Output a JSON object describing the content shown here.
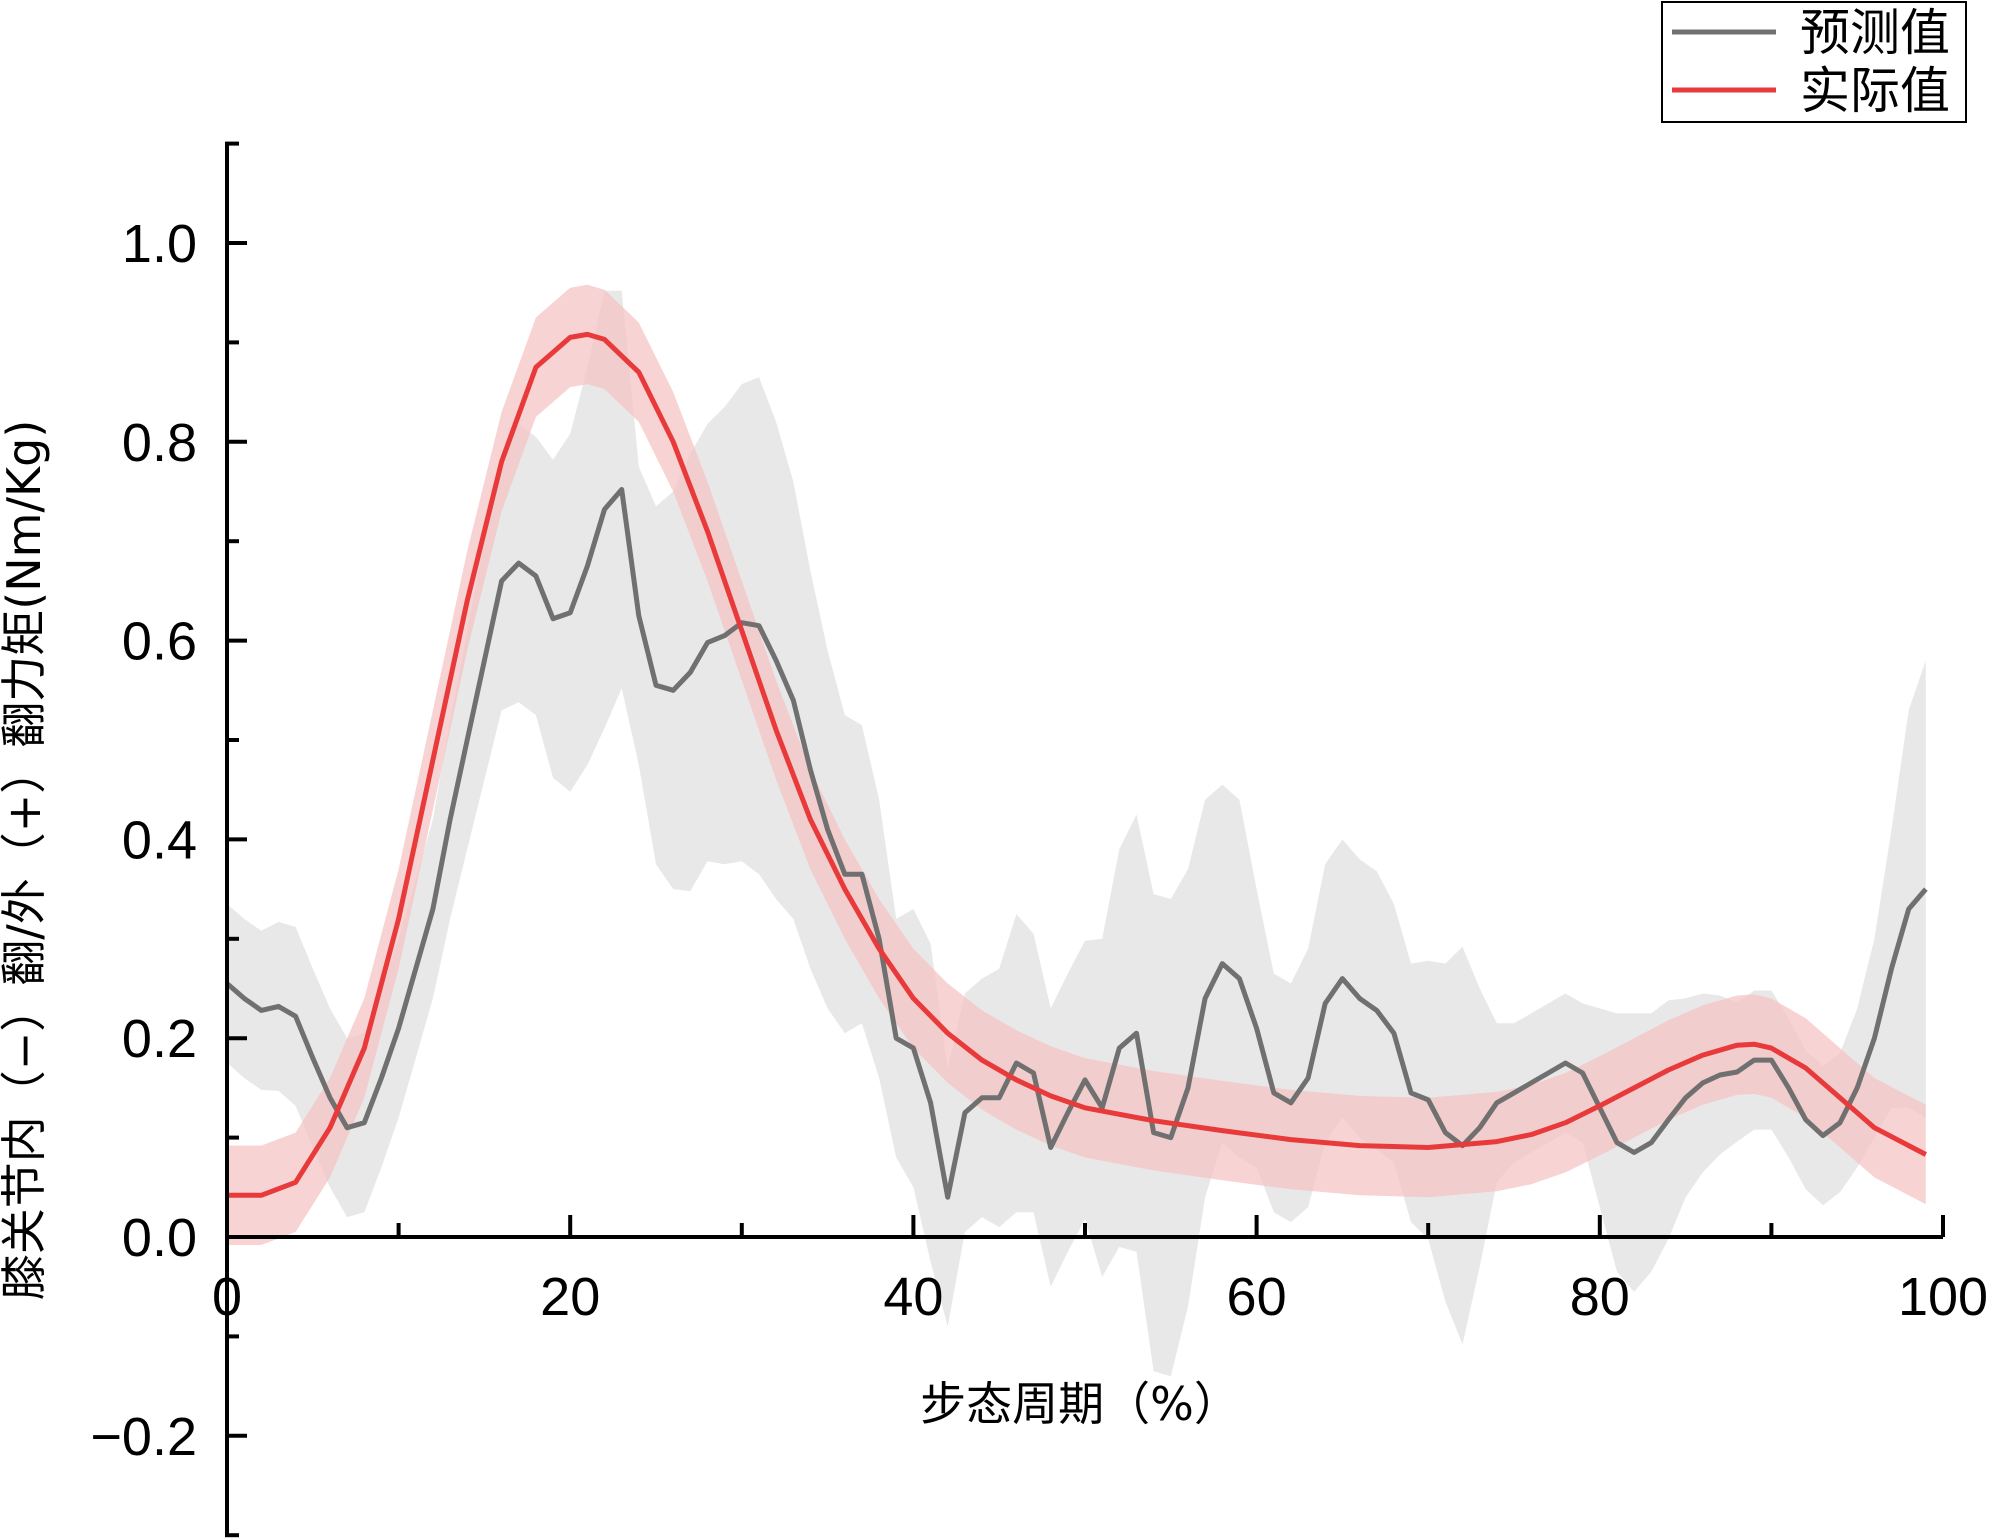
{
  "chart_data": {
    "type": "line",
    "xlabel": "步态周期（%）",
    "ylabel": "膝关节内（−）翻/外（+）翻力矩(Nm/Kg)",
    "xlim": [
      0,
      100
    ],
    "ylim": [
      -0.3,
      1.1
    ],
    "x_ticks": [
      0,
      20,
      40,
      60,
      80,
      100
    ],
    "x_tick_labels": [
      "0",
      "20",
      "40",
      "60",
      "80",
      "100"
    ],
    "y_ticks": [
      -0.2,
      0.0,
      0.2,
      0.4,
      0.6,
      0.8,
      1.0
    ],
    "y_tick_labels": [
      "−0.2",
      "0.0",
      "0.2",
      "0.4",
      "0.6",
      "0.8",
      "1.0"
    ],
    "legend_position": "top-right",
    "grid": false,
    "series": [
      {
        "name": "预测值",
        "color": "#707070",
        "band_color": "#e0e0e0",
        "points": [
          [
            0,
            0.255
          ],
          [
            1,
            0.24
          ],
          [
            2,
            0.228
          ],
          [
            3,
            0.232
          ],
          [
            4,
            0.222
          ],
          [
            5,
            0.18
          ],
          [
            6,
            0.14
          ],
          [
            7,
            0.11
          ],
          [
            8,
            0.115
          ],
          [
            9,
            0.16
          ],
          [
            10,
            0.21
          ],
          [
            11,
            0.27
          ],
          [
            12,
            0.33
          ],
          [
            13,
            0.42
          ],
          [
            14,
            0.5
          ],
          [
            15,
            0.58
          ],
          [
            16,
            0.66
          ],
          [
            17,
            0.678
          ],
          [
            18,
            0.665
          ],
          [
            19,
            0.622
          ],
          [
            20,
            0.628
          ],
          [
            21,
            0.675
          ],
          [
            22,
            0.732
          ],
          [
            23,
            0.752
          ],
          [
            24,
            0.625
          ],
          [
            25,
            0.555
          ],
          [
            26,
            0.55
          ],
          [
            27,
            0.568
          ],
          [
            28,
            0.598
          ],
          [
            29,
            0.605
          ],
          [
            30,
            0.618
          ],
          [
            31,
            0.615
          ],
          [
            32,
            0.58
          ],
          [
            33,
            0.54
          ],
          [
            34,
            0.47
          ],
          [
            35,
            0.41
          ],
          [
            36,
            0.365
          ],
          [
            37,
            0.365
          ],
          [
            38,
            0.3
          ],
          [
            39,
            0.2
          ],
          [
            40,
            0.19
          ],
          [
            41,
            0.135
          ],
          [
            42,
            0.04
          ],
          [
            43,
            0.125
          ],
          [
            44,
            0.14
          ],
          [
            45,
            0.14
          ],
          [
            46,
            0.175
          ],
          [
            47,
            0.165
          ],
          [
            48,
            0.09
          ],
          [
            49,
            0.125
          ],
          [
            50,
            0.158
          ],
          [
            51,
            0.13
          ],
          [
            52,
            0.19
          ],
          [
            53,
            0.205
          ],
          [
            54,
            0.105
          ],
          [
            55,
            0.1
          ],
          [
            56,
            0.15
          ],
          [
            57,
            0.24
          ],
          [
            58,
            0.275
          ],
          [
            59,
            0.26
          ],
          [
            60,
            0.21
          ],
          [
            61,
            0.145
          ],
          [
            62,
            0.135
          ],
          [
            63,
            0.16
          ],
          [
            64,
            0.235
          ],
          [
            65,
            0.26
          ],
          [
            66,
            0.24
          ],
          [
            67,
            0.228
          ],
          [
            68,
            0.205
          ],
          [
            69,
            0.145
          ],
          [
            70,
            0.138
          ],
          [
            71,
            0.105
          ],
          [
            72,
            0.092
          ],
          [
            73,
            0.11
          ],
          [
            74,
            0.135
          ],
          [
            75,
            0.145
          ],
          [
            76,
            0.155
          ],
          [
            77,
            0.165
          ],
          [
            78,
            0.175
          ],
          [
            79,
            0.165
          ],
          [
            80,
            0.13
          ],
          [
            81,
            0.095
          ],
          [
            82,
            0.085
          ],
          [
            83,
            0.095
          ],
          [
            84,
            0.118
          ],
          [
            85,
            0.14
          ],
          [
            86,
            0.155
          ],
          [
            87,
            0.163
          ],
          [
            88,
            0.166
          ],
          [
            89,
            0.178
          ],
          [
            90,
            0.178
          ],
          [
            91,
            0.15
          ],
          [
            92,
            0.118
          ],
          [
            93,
            0.102
          ],
          [
            94,
            0.115
          ],
          [
            95,
            0.15
          ],
          [
            96,
            0.2
          ],
          [
            97,
            0.27
          ],
          [
            98,
            0.33
          ],
          [
            99,
            0.35
          ]
        ],
        "band_half_width": [
          0.08,
          0.08,
          0.08,
          0.085,
          0.09,
          0.09,
          0.09,
          0.09,
          0.09,
          0.09,
          0.09,
          0.09,
          0.09,
          0.1,
          0.11,
          0.12,
          0.13,
          0.14,
          0.14,
          0.16,
          0.18,
          0.2,
          0.22,
          0.2,
          0.15,
          0.18,
          0.2,
          0.22,
          0.22,
          0.23,
          0.24,
          0.25,
          0.24,
          0.22,
          0.2,
          0.18,
          0.16,
          0.15,
          0.14,
          0.12,
          0.14,
          0.16,
          0.13,
          0.12,
          0.12,
          0.13,
          0.15,
          0.14,
          0.14,
          0.14,
          0.14,
          0.17,
          0.2,
          0.22,
          0.24,
          0.24,
          0.22,
          0.2,
          0.18,
          0.18,
          0.14,
          0.12,
          0.12,
          0.13,
          0.14,
          0.14,
          0.14,
          0.14,
          0.13,
          0.13,
          0.14,
          0.17,
          0.2,
          0.14,
          0.08,
          0.07,
          0.07,
          0.07,
          0.07,
          0.07,
          0.1,
          0.13,
          0.14,
          0.13,
          0.12,
          0.1,
          0.09,
          0.08,
          0.07,
          0.07,
          0.07,
          0.07,
          0.07,
          0.07,
          0.07,
          0.08,
          0.1,
          0.14,
          0.2,
          0.23
        ]
      },
      {
        "name": "实际值",
        "color": "#e83a3a",
        "band_color": "#f6c4c4",
        "band_half_width": 0.05,
        "points": [
          [
            0,
            0.042
          ],
          [
            2,
            0.042
          ],
          [
            4,
            0.055
          ],
          [
            6,
            0.11
          ],
          [
            8,
            0.19
          ],
          [
            10,
            0.32
          ],
          [
            12,
            0.48
          ],
          [
            14,
            0.64
          ],
          [
            16,
            0.78
          ],
          [
            18,
            0.875
          ],
          [
            20,
            0.905
          ],
          [
            21,
            0.908
          ],
          [
            22,
            0.903
          ],
          [
            24,
            0.87
          ],
          [
            26,
            0.8
          ],
          [
            28,
            0.71
          ],
          [
            30,
            0.61
          ],
          [
            32,
            0.51
          ],
          [
            34,
            0.42
          ],
          [
            36,
            0.35
          ],
          [
            38,
            0.29
          ],
          [
            40,
            0.24
          ],
          [
            42,
            0.205
          ],
          [
            44,
            0.178
          ],
          [
            46,
            0.158
          ],
          [
            48,
            0.142
          ],
          [
            50,
            0.13
          ],
          [
            54,
            0.117
          ],
          [
            58,
            0.107
          ],
          [
            62,
            0.098
          ],
          [
            66,
            0.092
          ],
          [
            70,
            0.09
          ],
          [
            74,
            0.096
          ],
          [
            76,
            0.103
          ],
          [
            78,
            0.115
          ],
          [
            80,
            0.132
          ],
          [
            82,
            0.15
          ],
          [
            84,
            0.168
          ],
          [
            86,
            0.183
          ],
          [
            88,
            0.193
          ],
          [
            89,
            0.194
          ],
          [
            90,
            0.19
          ],
          [
            92,
            0.17
          ],
          [
            94,
            0.14
          ],
          [
            96,
            0.11
          ],
          [
            98,
            0.092
          ],
          [
            99,
            0.083
          ]
        ]
      }
    ]
  }
}
